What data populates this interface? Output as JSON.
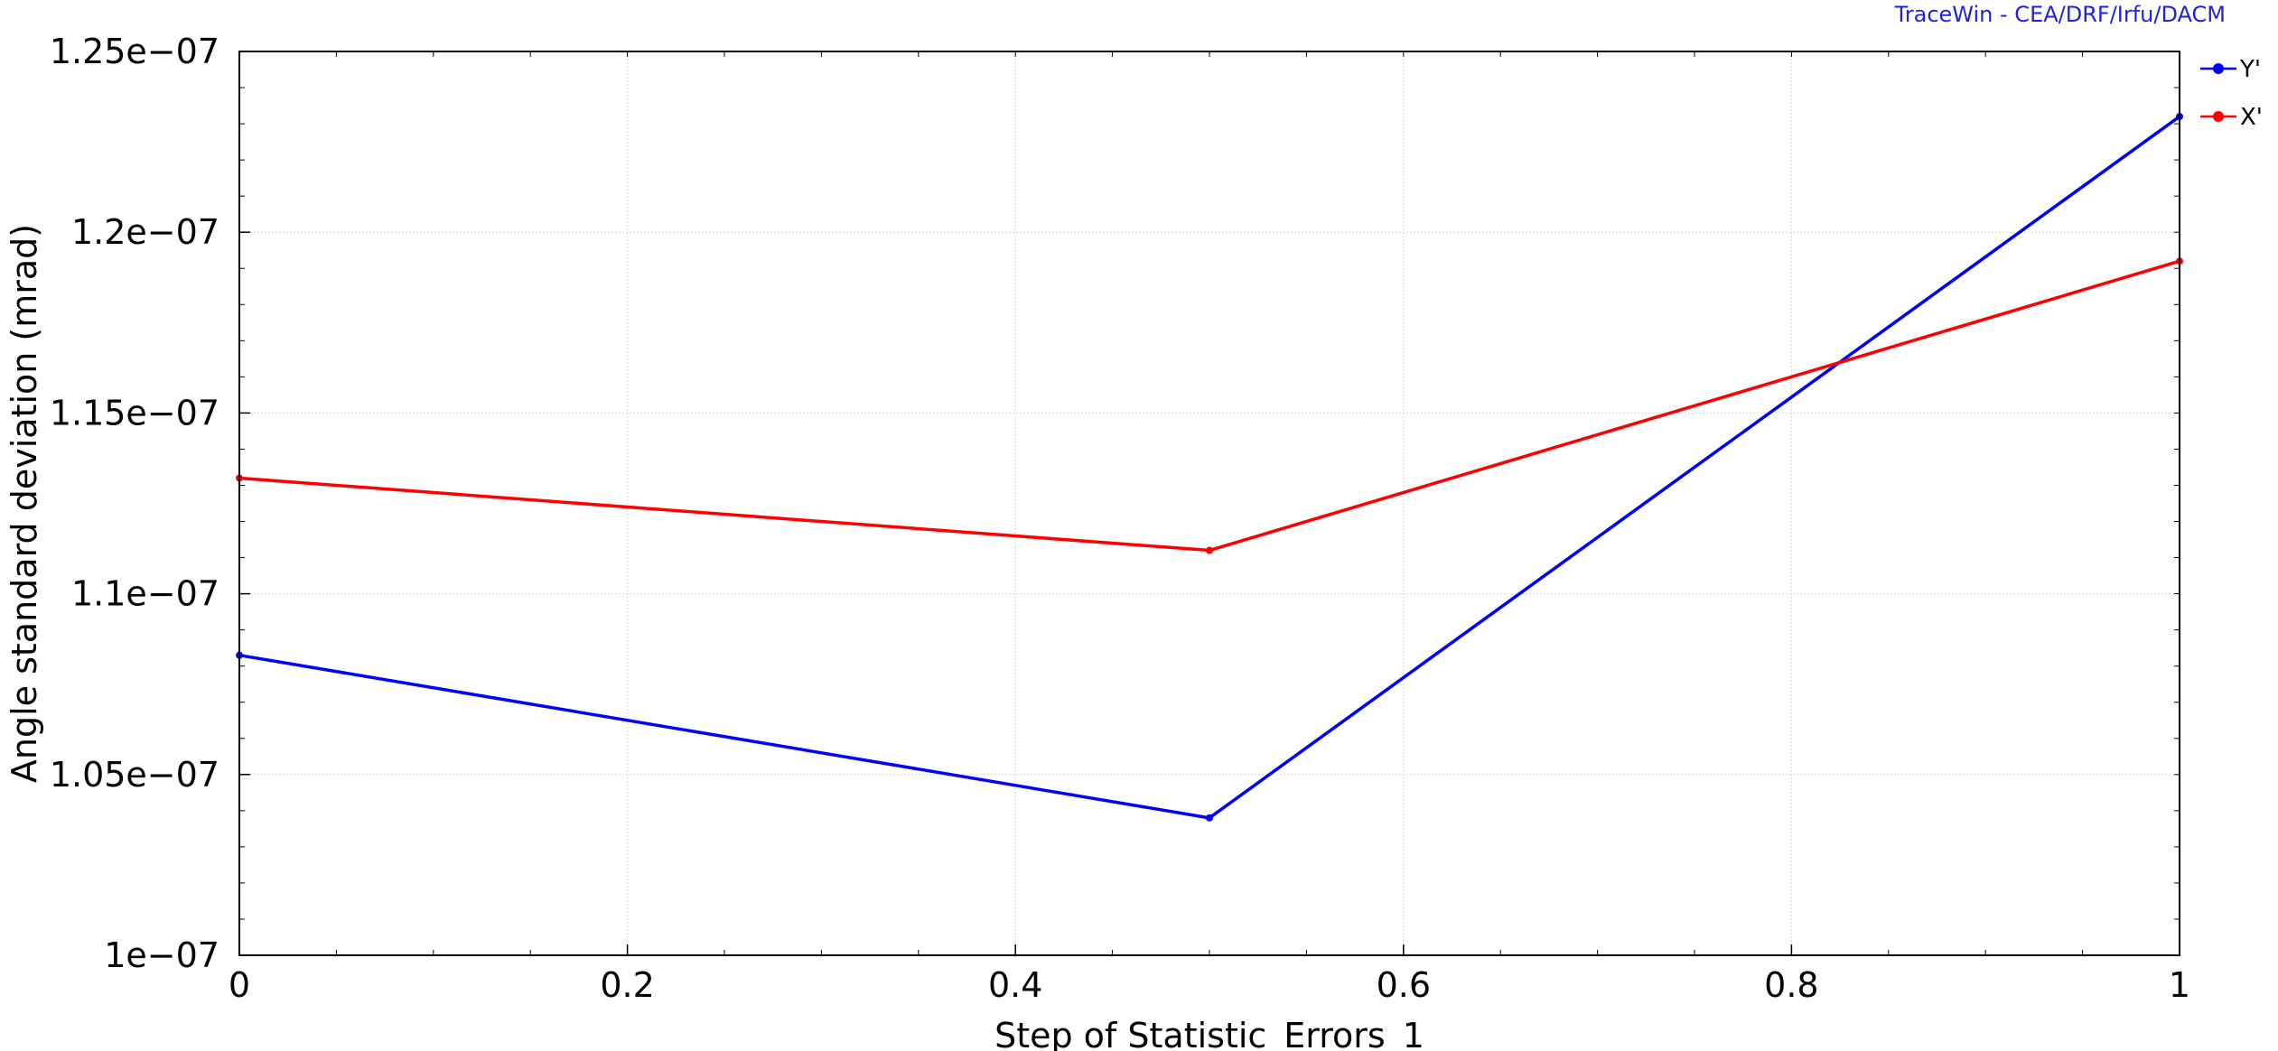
{
  "credit": "TraceWin - CEA/DRF/Irfu/DACM",
  "chart_data": {
    "type": "line",
    "xlabel": "Step of Statistic_Errors_1",
    "ylabel": "Angle standard deviation (mrad)",
    "xlim": [
      0,
      1
    ],
    "ylim": [
      1e-07,
      1.25e-07
    ],
    "xticks": [
      {
        "v": 0,
        "label": "0"
      },
      {
        "v": 0.2,
        "label": "0.2"
      },
      {
        "v": 0.4,
        "label": "0.4"
      },
      {
        "v": 0.6,
        "label": "0.6"
      },
      {
        "v": 0.8,
        "label": "0.8"
      },
      {
        "v": 1,
        "label": "1"
      }
    ],
    "yticks": [
      {
        "v": 1e-07,
        "label": "1e−07"
      },
      {
        "v": 1.05e-07,
        "label": "1.05e−07"
      },
      {
        "v": 1.1e-07,
        "label": "1.1e−07"
      },
      {
        "v": 1.15e-07,
        "label": "1.15e−07"
      },
      {
        "v": 1.2e-07,
        "label": "1.2e−07"
      },
      {
        "v": 1.25e-07,
        "label": "1.25e−07"
      }
    ],
    "grid": true,
    "legend_position": "right, outside top",
    "series": [
      {
        "name": "Y'",
        "color": "#0000ff",
        "x": [
          0,
          0.5,
          1
        ],
        "y": [
          1.083e-07,
          1.038e-07,
          1.232e-07
        ]
      },
      {
        "name": "X'",
        "color": "#ff0000",
        "x": [
          0,
          0.5,
          1
        ],
        "y": [
          1.132e-07,
          1.112e-07,
          1.192e-07
        ]
      }
    ]
  }
}
